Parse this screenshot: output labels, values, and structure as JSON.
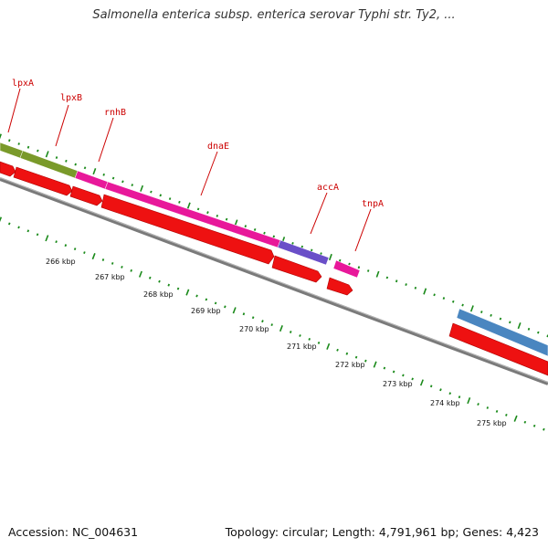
{
  "title": "Salmonella enterica subsp. enterica serovar Typhi str. Ty2, ...",
  "footer": {
    "accession": "Accession: NC_004631",
    "summary": "Topology: circular; Length: 4,791,961 bp; Genes: 4,423"
  },
  "colors": {
    "backbone": "#7a7a7a",
    "tick": "#1a8a1a",
    "gene_label": "#cc0000",
    "cds": "#ee1111"
  },
  "genes": [
    {
      "label": "lpxA",
      "color": "#7a9a2a"
    },
    {
      "label": "lpxB",
      "color": "#7a9a2a"
    },
    {
      "label": "rnhB",
      "color": "#e8189a"
    },
    {
      "label": "dnaE",
      "color": "#e8189a"
    },
    {
      "label": "accA",
      "color": "#6a4fc8"
    },
    {
      "label": "tnpA",
      "color": "#e8189a"
    },
    {
      "label": "",
      "color": "#4a86c0"
    }
  ],
  "ruler": [
    {
      "label": "266 kbp"
    },
    {
      "label": "267 kbp"
    },
    {
      "label": "268 kbp"
    },
    {
      "label": "269 kbp"
    },
    {
      "label": "270 kbp"
    },
    {
      "label": "271 kbp"
    },
    {
      "label": "272 kbp"
    },
    {
      "label": "273 kbp"
    },
    {
      "label": "274 kbp"
    },
    {
      "label": "275 kbp"
    }
  ]
}
